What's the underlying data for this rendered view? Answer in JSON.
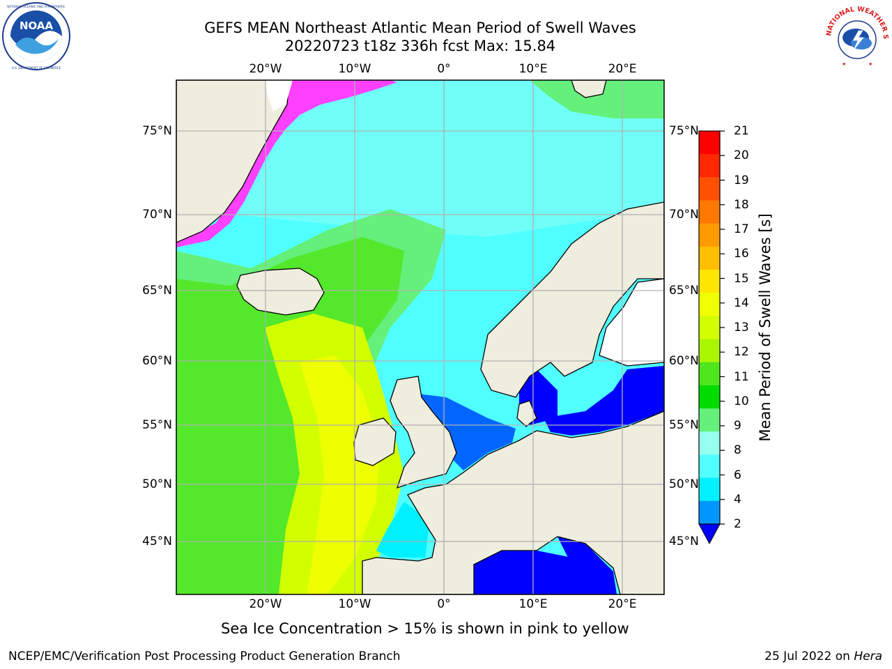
{
  "header": {
    "title_line1": "GEFS MEAN Northeast Atlantic Mean Period of Swell Waves",
    "title_line2": "20220723 t18z 336h fcst   Max: 15.84"
  },
  "logos": {
    "left": {
      "name": "NOAA",
      "ring_text": "NATIONAL OCEANIC AND ATMOSPHERIC ADMINISTRATION",
      "bottom_text": "U.S. DEPARTMENT OF COMMERCE"
    },
    "right": {
      "name": "NATIONAL WEATHER SERVICE"
    }
  },
  "map": {
    "region": "Northeast Atlantic",
    "lon_labels_top": [
      "20°W",
      "10°W",
      "0°",
      "10°E",
      "20°E"
    ],
    "lon_labels_bottom": [
      "20°W",
      "10°W",
      "0°",
      "10°E",
      "20°E"
    ],
    "lat_labels_left": [
      "75°N",
      "70°N",
      "65°N",
      "60°N",
      "55°N",
      "50°N",
      "45°N"
    ],
    "lat_labels_right": [
      "75°N",
      "70°N",
      "65°N",
      "60°N",
      "55°N",
      "50°N",
      "45°N"
    ],
    "land_color": "#efedde",
    "grid_color": "#b0b0b0"
  },
  "colorbar": {
    "label": "Mean Period of Swell Waves [s]",
    "ticks": [
      "21",
      "20",
      "19",
      "18",
      "17",
      "16",
      "15",
      "14",
      "13",
      "12",
      "11",
      "10",
      "9",
      "8",
      "6",
      "4",
      "2"
    ],
    "colors_top_to_bottom": [
      "#ff0000",
      "#ff2800",
      "#ff5000",
      "#ff7800",
      "#ff9a00",
      "#ffbe00",
      "#ffe600",
      "#f0ff00",
      "#d2ff00",
      "#aaf500",
      "#50e61e",
      "#00dc00",
      "#64f07a",
      "#96fff0",
      "#50ffff",
      "#00f0ff",
      "#0096ff"
    ],
    "extend_color": "#0000ff"
  },
  "caption": "Sea Ice Concentration > 15% is shown in pink to yellow",
  "footer": {
    "left": "NCEP/EMC/Verification Post Processing Product Generation Branch",
    "right_date": "25 Jul 2022 on",
    "right_host": "Hera"
  }
}
